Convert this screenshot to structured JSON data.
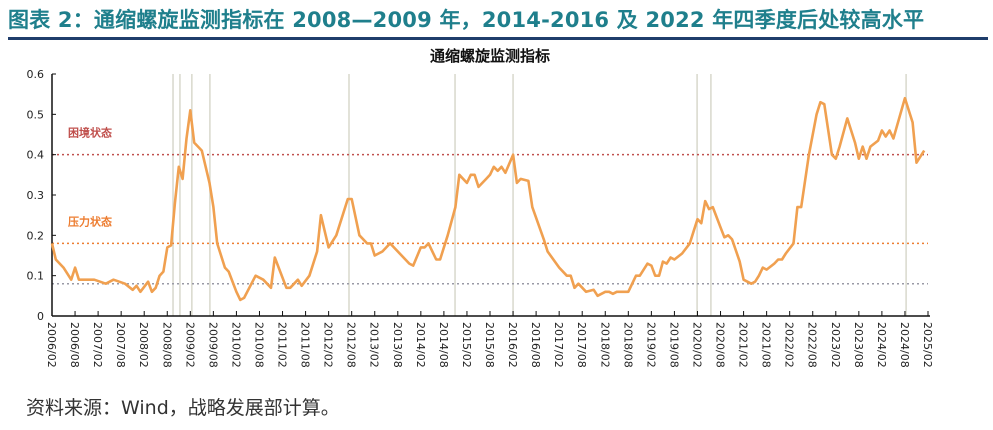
{
  "header": {
    "title": "图表 2：通缩螺旋监测指标在 2008—2009 年，2014-2016 及 2022 年四季度后处较高水平"
  },
  "source": "资料来源：Wind，战略发展部计算。",
  "colors": {
    "line": "#f0a050",
    "distress": "#c0504d",
    "pressure": "#ed7d31",
    "baseline": "#9a9aa6",
    "marker": "#d8d8cc",
    "header": "#1f7f8c"
  },
  "chart_data": {
    "type": "line",
    "title": "通缩螺旋监测指标",
    "x_unit": "months since 2006/02",
    "xlim": [
      0,
      228
    ],
    "ylim": [
      0,
      0.6
    ],
    "yticks": [
      "0",
      "0.1",
      "0.2",
      "0.3",
      "0.4",
      "0.5",
      "0.6"
    ],
    "xticks": [
      "2006/02",
      "2006/08",
      "2007/02",
      "2007/08",
      "2008/02",
      "2008/08",
      "2009/02",
      "2009/08",
      "2010/02",
      "2010/08",
      "2011/02",
      "2011/08",
      "2012/02",
      "2012/08",
      "2013/02",
      "2013/08",
      "2014/02",
      "2014/08",
      "2015/02",
      "2015/08",
      "2016/02",
      "2016/08",
      "2017/02",
      "2017/08",
      "2018/02",
      "2018/08",
      "2019/02",
      "2019/08",
      "2020/02",
      "2020/08",
      "2021/02",
      "2021/08",
      "2022/02",
      "2022/08",
      "2023/02",
      "2023/08",
      "2024/02",
      "2024/08",
      "2025/02"
    ],
    "thresholds": [
      {
        "label": "困境状态",
        "value": 0.4
      },
      {
        "label": "压力状态",
        "value": 0.18
      },
      {
        "label": "",
        "value": 0.08
      }
    ],
    "marker_months": [
      31.5,
      33.3,
      36.4,
      41.1,
      77.3,
      104.9,
      120,
      167.9,
      171.5,
      222.3
    ],
    "series": [
      {
        "name": "通缩螺旋监测指标",
        "points": [
          [
            0,
            0.18
          ],
          [
            1,
            0.14
          ],
          [
            3,
            0.12
          ],
          [
            5,
            0.09
          ],
          [
            6,
            0.12
          ],
          [
            7,
            0.09
          ],
          [
            9,
            0.09
          ],
          [
            11,
            0.09
          ],
          [
            14,
            0.08
          ],
          [
            16,
            0.09
          ],
          [
            19,
            0.08
          ],
          [
            21,
            0.065
          ],
          [
            22,
            0.075
          ],
          [
            23,
            0.06
          ],
          [
            25,
            0.085
          ],
          [
            26,
            0.06
          ],
          [
            27,
            0.07
          ],
          [
            28,
            0.1
          ],
          [
            29,
            0.11
          ],
          [
            30,
            0.17
          ],
          [
            31,
            0.175
          ],
          [
            32,
            0.28
          ],
          [
            33,
            0.37
          ],
          [
            34,
            0.34
          ],
          [
            35,
            0.44
          ],
          [
            36,
            0.51
          ],
          [
            37,
            0.43
          ],
          [
            39,
            0.41
          ],
          [
            41,
            0.33
          ],
          [
            42,
            0.27
          ],
          [
            43,
            0.18
          ],
          [
            45,
            0.12
          ],
          [
            46,
            0.11
          ],
          [
            48,
            0.06
          ],
          [
            49,
            0.04
          ],
          [
            50,
            0.045
          ],
          [
            53,
            0.1
          ],
          [
            55,
            0.09
          ],
          [
            57,
            0.07
          ],
          [
            58,
            0.145
          ],
          [
            61,
            0.07
          ],
          [
            62,
            0.07
          ],
          [
            64,
            0.09
          ],
          [
            65,
            0.075
          ],
          [
            67,
            0.1
          ],
          [
            69,
            0.16
          ],
          [
            70,
            0.25
          ],
          [
            72,
            0.17
          ],
          [
            74,
            0.2
          ],
          [
            77,
            0.29
          ],
          [
            78,
            0.29
          ],
          [
            80,
            0.2
          ],
          [
            82,
            0.18
          ],
          [
            83,
            0.18
          ],
          [
            84,
            0.15
          ],
          [
            86,
            0.16
          ],
          [
            87,
            0.17
          ],
          [
            88,
            0.18
          ],
          [
            91,
            0.15
          ],
          [
            93,
            0.13
          ],
          [
            94,
            0.125
          ],
          [
            96,
            0.17
          ],
          [
            97,
            0.17
          ],
          [
            98,
            0.18
          ],
          [
            100,
            0.14
          ],
          [
            101,
            0.14
          ],
          [
            103,
            0.2
          ],
          [
            105,
            0.27
          ],
          [
            106,
            0.35
          ],
          [
            108,
            0.33
          ],
          [
            109,
            0.35
          ],
          [
            110,
            0.35
          ],
          [
            111,
            0.32
          ],
          [
            113,
            0.34
          ],
          [
            114,
            0.35
          ],
          [
            115,
            0.37
          ],
          [
            116,
            0.36
          ],
          [
            117,
            0.37
          ],
          [
            118,
            0.355
          ],
          [
            120,
            0.4
          ],
          [
            121,
            0.33
          ],
          [
            122,
            0.34
          ],
          [
            124,
            0.335
          ],
          [
            125,
            0.27
          ],
          [
            128,
            0.19
          ],
          [
            129,
            0.16
          ],
          [
            132,
            0.12
          ],
          [
            134,
            0.1
          ],
          [
            135,
            0.1
          ],
          [
            136,
            0.07
          ],
          [
            137,
            0.08
          ],
          [
            139,
            0.06
          ],
          [
            141,
            0.065
          ],
          [
            142,
            0.05
          ],
          [
            144,
            0.06
          ],
          [
            145,
            0.06
          ],
          [
            146,
            0.055
          ],
          [
            147,
            0.06
          ],
          [
            150,
            0.06
          ],
          [
            152,
            0.1
          ],
          [
            153,
            0.1
          ],
          [
            155,
            0.13
          ],
          [
            156,
            0.125
          ],
          [
            157,
            0.1
          ],
          [
            158,
            0.1
          ],
          [
            159,
            0.135
          ],
          [
            160,
            0.13
          ],
          [
            161,
            0.145
          ],
          [
            162,
            0.14
          ],
          [
            164,
            0.155
          ],
          [
            166,
            0.18
          ],
          [
            167,
            0.21
          ],
          [
            168,
            0.24
          ],
          [
            169,
            0.23
          ],
          [
            170,
            0.285
          ],
          [
            171,
            0.265
          ],
          [
            172,
            0.27
          ],
          [
            174,
            0.22
          ],
          [
            175,
            0.195
          ],
          [
            176,
            0.2
          ],
          [
            177,
            0.19
          ],
          [
            179,
            0.135
          ],
          [
            180,
            0.09
          ],
          [
            182,
            0.08
          ],
          [
            183,
            0.085
          ],
          [
            184,
            0.1
          ],
          [
            185,
            0.12
          ],
          [
            186,
            0.115
          ],
          [
            188,
            0.13
          ],
          [
            189,
            0.14
          ],
          [
            190,
            0.14
          ],
          [
            191,
            0.155
          ],
          [
            193,
            0.18
          ],
          [
            194,
            0.27
          ],
          [
            195,
            0.27
          ],
          [
            197,
            0.4
          ],
          [
            199,
            0.5
          ],
          [
            200,
            0.53
          ],
          [
            201,
            0.525
          ],
          [
            203,
            0.4
          ],
          [
            204,
            0.39
          ],
          [
            205,
            0.42
          ],
          [
            207,
            0.49
          ],
          [
            209,
            0.43
          ],
          [
            210,
            0.39
          ],
          [
            211,
            0.42
          ],
          [
            212,
            0.39
          ],
          [
            213,
            0.42
          ],
          [
            215,
            0.435
          ],
          [
            216,
            0.46
          ],
          [
            217,
            0.445
          ],
          [
            218,
            0.46
          ],
          [
            219,
            0.44
          ],
          [
            222,
            0.54
          ],
          [
            224,
            0.48
          ],
          [
            225,
            0.38
          ],
          [
            227,
            0.41
          ]
        ]
      }
    ]
  }
}
